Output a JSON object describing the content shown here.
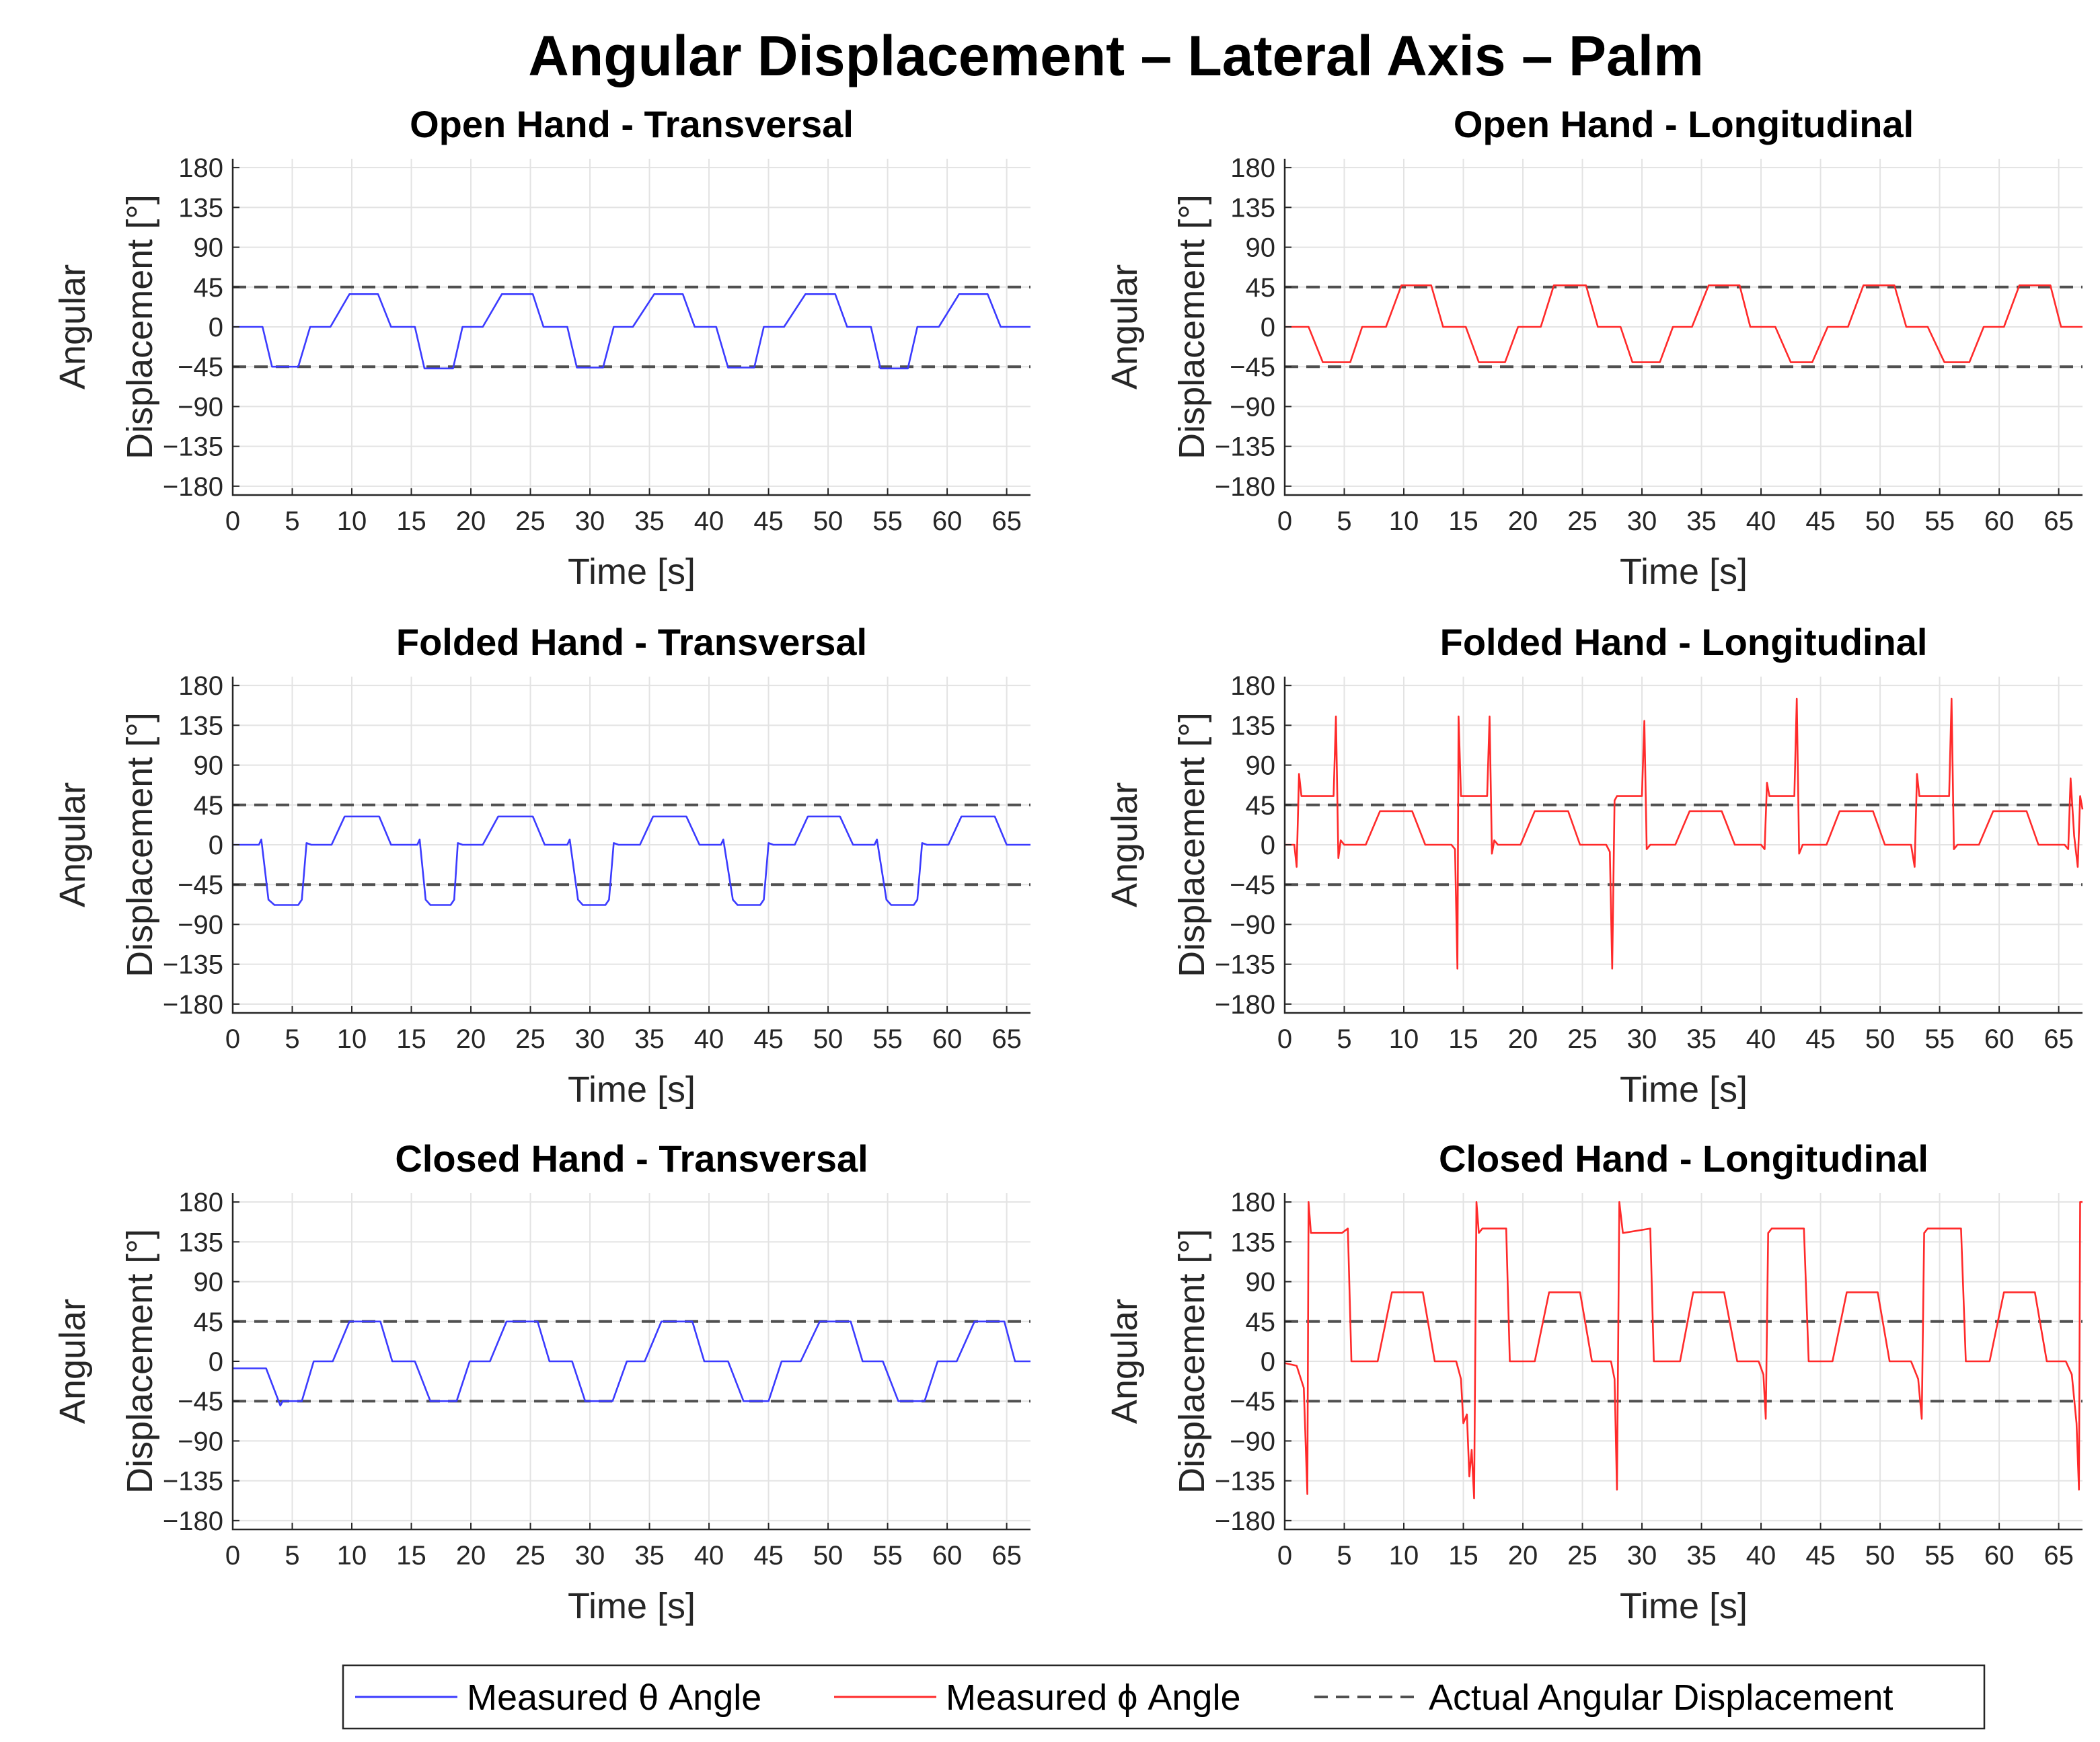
{
  "figure": {
    "title": "Angular Displacement – Lateral Axis – Palm",
    "colors": {
      "theta": "#3b3bff",
      "phi": "#ff2a2a",
      "reference": "#505050"
    }
  },
  "legend": {
    "theta_label": "Measured θ Angle",
    "phi_label": "Measured ϕ Angle",
    "reference_label": "Actual Angular Displacement"
  },
  "chart_data": [
    {
      "id": "p0",
      "type": "line",
      "title": "Open Hand - Transversal",
      "xlabel": "Time [s]",
      "ylabel": [
        "Angular",
        "Displacement [°]"
      ],
      "xlim": [
        0,
        67
      ],
      "ylim": [
        -190,
        190
      ],
      "xticks": [
        0,
        5,
        10,
        15,
        20,
        25,
        30,
        35,
        40,
        45,
        50,
        55,
        60,
        65
      ],
      "yticks": [
        180,
        135,
        90,
        45,
        0,
        -45,
        -90,
        -135,
        -180
      ],
      "ytick_labels": [
        "180",
        "135",
        "90",
        "45",
        "0",
        "−45",
        "−90",
        "−135",
        "−180"
      ],
      "reference_lines": [
        45,
        -45
      ],
      "series": [
        {
          "name": "Measured θ Angle",
          "color_key": "theta",
          "x": [
            0,
            2.5,
            3.3,
            5.5,
            6.5,
            8.2,
            9.8,
            12.2,
            13.3,
            15.3,
            16.1,
            18.5,
            19.3,
            21.0,
            22.6,
            25.2,
            26.1,
            28.1,
            28.9,
            31.1,
            32.0,
            33.6,
            35.4,
            37.8,
            38.8,
            40.6,
            41.6,
            43.8,
            44.6,
            46.3,
            48.1,
            50.6,
            51.6,
            53.6,
            54.4,
            56.7,
            57.5,
            59.3,
            61.0,
            63.4,
            64.5,
            67
          ],
          "y": [
            0,
            0,
            -45,
            -45,
            0,
            0,
            37,
            37,
            0,
            0,
            -47,
            -47,
            0,
            0,
            37,
            37,
            0,
            0,
            -46,
            -46,
            0,
            0,
            37,
            37,
            0,
            0,
            -46,
            -46,
            0,
            0,
            37,
            37,
            0,
            0,
            -47,
            -47,
            0,
            0,
            37,
            37,
            0,
            0
          ]
        }
      ]
    },
    {
      "id": "p1",
      "type": "line",
      "title": "Open Hand - Longitudinal",
      "xlabel": "Time [s]",
      "ylabel": [
        "Angular",
        "Displacement [°]"
      ],
      "xlim": [
        0,
        67
      ],
      "ylim": [
        -190,
        190
      ],
      "xticks": [
        0,
        5,
        10,
        15,
        20,
        25,
        30,
        35,
        40,
        45,
        50,
        55,
        60,
        65
      ],
      "yticks": [
        180,
        135,
        90,
        45,
        0,
        -45,
        -90,
        -135,
        -180
      ],
      "ytick_labels": [
        "180",
        "135",
        "90",
        "45",
        "0",
        "−45",
        "−90",
        "−135",
        "−180"
      ],
      "reference_lines": [
        45,
        -45
      ],
      "series": [
        {
          "name": "Measured ϕ Angle",
          "color_key": "phi",
          "x": [
            0,
            2.0,
            3.2,
            5.5,
            6.5,
            8.5,
            9.8,
            12.3,
            13.3,
            15.2,
            16.3,
            18.5,
            19.6,
            21.5,
            22.6,
            25.3,
            26.3,
            28.2,
            29.2,
            31.5,
            32.6,
            34.2,
            35.6,
            38.2,
            39.1,
            41.2,
            42.5,
            44.3,
            45.6,
            47.3,
            48.6,
            51.2,
            52.2,
            54.0,
            55.4,
            57.5,
            58.7,
            60.4,
            61.7,
            64.3,
            65.2,
            67
          ],
          "y": [
            0,
            0,
            -40,
            -40,
            0,
            0,
            47,
            47,
            0,
            0,
            -40,
            -40,
            0,
            0,
            47,
            47,
            0,
            0,
            -40,
            -40,
            0,
            0,
            47,
            47,
            0,
            0,
            -40,
            -40,
            0,
            0,
            47,
            47,
            0,
            0,
            -40,
            -40,
            0,
            0,
            47,
            47,
            0,
            0
          ]
        }
      ]
    },
    {
      "id": "p2",
      "type": "line",
      "title": "Folded Hand - Transversal",
      "xlabel": "Time [s]",
      "ylabel": [
        "Angular",
        "Displacement [°]"
      ],
      "xlim": [
        0,
        67
      ],
      "ylim": [
        -190,
        190
      ],
      "xticks": [
        0,
        5,
        10,
        15,
        20,
        25,
        30,
        35,
        40,
        45,
        50,
        55,
        60,
        65
      ],
      "yticks": [
        180,
        135,
        90,
        45,
        0,
        -45,
        -90,
        -135,
        -180
      ],
      "ytick_labels": [
        "180",
        "135",
        "90",
        "45",
        "0",
        "−45",
        "−90",
        "−135",
        "−180"
      ],
      "reference_lines": [
        45,
        -45
      ],
      "series": [
        {
          "name": "Measured θ Angle",
          "color_key": "theta",
          "x": [
            0,
            2.2,
            2.4,
            3.0,
            3.5,
            5.5,
            5.8,
            6.2,
            6.6,
            8.3,
            9.4,
            12.3,
            13.3,
            15.5,
            15.7,
            16.2,
            16.6,
            18.3,
            18.6,
            18.9,
            19.3,
            21.0,
            22.3,
            25.2,
            26.2,
            28.1,
            28.3,
            29.0,
            29.4,
            31.3,
            31.6,
            32.0,
            32.4,
            34.2,
            35.3,
            38.1,
            39.2,
            41.0,
            41.2,
            42.0,
            42.4,
            44.3,
            44.6,
            45.0,
            45.4,
            47.2,
            48.3,
            51.0,
            52.1,
            53.9,
            54.1,
            54.9,
            55.3,
            57.2,
            57.5,
            57.9,
            58.3,
            60.1,
            61.2,
            64.0,
            65.0,
            67
          ],
          "y": [
            0,
            0,
            6,
            -62,
            -68,
            -68,
            -62,
            2,
            0,
            0,
            32,
            32,
            0,
            0,
            6,
            -62,
            -68,
            -68,
            -62,
            2,
            0,
            0,
            32,
            32,
            0,
            0,
            6,
            -62,
            -68,
            -68,
            -62,
            2,
            0,
            0,
            32,
            32,
            0,
            0,
            6,
            -62,
            -68,
            -68,
            -62,
            2,
            0,
            0,
            32,
            32,
            0,
            0,
            6,
            -62,
            -68,
            -68,
            -62,
            2,
            0,
            0,
            32,
            32,
            0,
            0
          ]
        }
      ]
    },
    {
      "id": "p3",
      "type": "line",
      "title": "Folded Hand - Longitudinal",
      "xlabel": "Time [s]",
      "ylabel": [
        "Angular",
        "Displacement [°]"
      ],
      "xlim": [
        0,
        67
      ],
      "ylim": [
        -190,
        190
      ],
      "xticks": [
        0,
        5,
        10,
        15,
        20,
        25,
        30,
        35,
        40,
        45,
        50,
        55,
        60,
        65
      ],
      "yticks": [
        180,
        135,
        90,
        45,
        0,
        -45,
        -90,
        -135,
        -180
      ],
      "ytick_labels": [
        "180",
        "135",
        "90",
        "45",
        "0",
        "−45",
        "−90",
        "−135",
        "−180"
      ],
      "reference_lines": [
        45,
        -45
      ],
      "series": [
        {
          "name": "Measured ϕ Angle",
          "color_key": "phi",
          "x": [
            0,
            0.8,
            1.0,
            1.2,
            1.4,
            1.6,
            4.1,
            4.3,
            4.5,
            4.7,
            5.0,
            6.8,
            8.0,
            10.7,
            11.8,
            14.0,
            14.3,
            14.5,
            14.6,
            14.8,
            15.0,
            17.0,
            17.2,
            17.4,
            17.6,
            17.9,
            19.8,
            21.0,
            23.8,
            24.8,
            27.0,
            27.3,
            27.5,
            27.7,
            27.9,
            30.0,
            30.2,
            30.4,
            30.7,
            32.8,
            34.0,
            36.7,
            37.8,
            40.0,
            40.3,
            40.5,
            40.7,
            42.8,
            43.0,
            43.2,
            43.5,
            45.5,
            46.6,
            49.4,
            50.4,
            52.6,
            52.9,
            53.1,
            53.3,
            55.8,
            56.0,
            56.2,
            56.5,
            58.3,
            59.5,
            62.3,
            63.3,
            65.5,
            65.8,
            66.0,
            66.3,
            66.6,
            66.8,
            67
          ],
          "y": [
            0,
            0,
            -25,
            80,
            55,
            55,
            55,
            145,
            -15,
            5,
            0,
            0,
            38,
            38,
            0,
            0,
            -5,
            -140,
            145,
            55,
            55,
            55,
            145,
            -10,
            5,
            0,
            0,
            38,
            38,
            0,
            0,
            -8,
            -140,
            50,
            55,
            55,
            140,
            -5,
            0,
            0,
            38,
            38,
            0,
            0,
            -5,
            70,
            55,
            55,
            165,
            -10,
            0,
            0,
            38,
            38,
            0,
            0,
            -25,
            80,
            55,
            55,
            165,
            -5,
            0,
            0,
            38,
            38,
            0,
            0,
            -5,
            75,
            10,
            -25,
            55,
            40
          ]
        }
      ]
    },
    {
      "id": "p4",
      "type": "line",
      "title": "Closed Hand - Transversal",
      "xlabel": "Time [s]",
      "ylabel": [
        "Angular",
        "Displacement [°]"
      ],
      "xlim": [
        0,
        67
      ],
      "ylim": [
        -190,
        190
      ],
      "xticks": [
        0,
        5,
        10,
        15,
        20,
        25,
        30,
        35,
        40,
        45,
        50,
        55,
        60,
        65
      ],
      "yticks": [
        180,
        135,
        90,
        45,
        0,
        -45,
        -90,
        -135,
        -180
      ],
      "ytick_labels": [
        "180",
        "135",
        "90",
        "45",
        "0",
        "−45",
        "−90",
        "−135",
        "−180"
      ],
      "reference_lines": [
        45,
        -45
      ],
      "series": [
        {
          "name": "Measured θ Angle",
          "color_key": "theta",
          "x": [
            0,
            2.8,
            4.0,
            4.2,
            5.8,
            6.8,
            8.4,
            9.8,
            12.4,
            13.4,
            15.3,
            16.6,
            18.8,
            19.9,
            21.6,
            23.0,
            25.6,
            26.6,
            28.5,
            29.6,
            31.9,
            33.1,
            34.6,
            36.0,
            38.6,
            39.6,
            41.6,
            42.9,
            45.0,
            46.1,
            47.7,
            49.3,
            51.9,
            52.9,
            54.6,
            55.9,
            58.1,
            59.2,
            60.8,
            62.3,
            64.8,
            65.7,
            67
          ],
          "y": [
            -8,
            -8,
            -50,
            -45,
            -45,
            0,
            0,
            45,
            45,
            0,
            0,
            -45,
            -45,
            0,
            0,
            45,
            45,
            0,
            0,
            -45,
            -45,
            0,
            0,
            45,
            45,
            0,
            0,
            -45,
            -45,
            0,
            0,
            45,
            45,
            0,
            0,
            -45,
            -45,
            0,
            0,
            45,
            45,
            0,
            0
          ]
        }
      ]
    },
    {
      "id": "p5",
      "type": "line",
      "title": "Closed Hand - Longitudinal",
      "xlabel": "Time [s]",
      "ylabel": [
        "Angular",
        "Displacement [°]"
      ],
      "xlim": [
        0,
        67
      ],
      "ylim": [
        -190,
        190
      ],
      "xticks": [
        0,
        5,
        10,
        15,
        20,
        25,
        30,
        35,
        40,
        45,
        50,
        55,
        60,
        65
      ],
      "yticks": [
        180,
        135,
        90,
        45,
        0,
        -45,
        -90,
        -135,
        -180
      ],
      "ytick_labels": [
        "180",
        "135",
        "90",
        "45",
        "0",
        "−45",
        "−90",
        "−135",
        "−180"
      ],
      "reference_lines": [
        45,
        -45
      ],
      "series": [
        {
          "name": "Measured ϕ Angle",
          "color_key": "phi",
          "x": [
            0,
            1.0,
            1.6,
            1.9,
            2.0,
            2.2,
            4.8,
            5.3,
            5.6,
            6.0,
            7.8,
            9.0,
            11.6,
            12.6,
            14.4,
            14.8,
            15.0,
            15.3,
            15.5,
            15.7,
            15.9,
            16.1,
            16.3,
            16.6,
            18.6,
            18.9,
            19.2,
            21.0,
            22.2,
            24.8,
            25.8,
            27.4,
            27.7,
            27.9,
            28.1,
            28.4,
            30.7,
            31.0,
            31.3,
            33.2,
            34.3,
            36.9,
            38.0,
            39.8,
            40.2,
            40.4,
            40.6,
            40.9,
            43.6,
            44.0,
            44.4,
            46.0,
            47.2,
            49.8,
            50.8,
            52.6,
            53.2,
            53.5,
            53.7,
            54.0,
            56.8,
            57.2,
            57.6,
            59.2,
            60.4,
            63.0,
            64.0,
            65.6,
            66.1,
            66.5,
            66.7,
            66.8,
            67
          ],
          "y": [
            -2,
            -5,
            -30,
            -150,
            180,
            145,
            145,
            150,
            0,
            0,
            0,
            78,
            78,
            0,
            0,
            -20,
            -70,
            -60,
            -130,
            -100,
            -155,
            180,
            145,
            150,
            150,
            0,
            0,
            0,
            78,
            78,
            0,
            0,
            -20,
            -145,
            180,
            145,
            150,
            0,
            0,
            0,
            78,
            78,
            0,
            0,
            -15,
            -65,
            145,
            150,
            150,
            0,
            0,
            0,
            78,
            78,
            0,
            0,
            -20,
            -65,
            145,
            150,
            150,
            0,
            0,
            0,
            78,
            78,
            0,
            0,
            -15,
            -70,
            -145,
            180,
            180
          ]
        }
      ]
    }
  ]
}
